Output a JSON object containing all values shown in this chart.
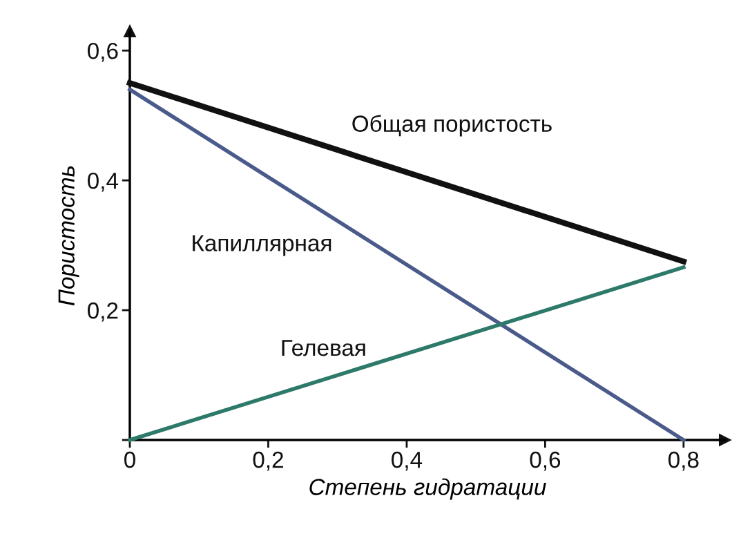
{
  "chart_data": {
    "type": "line",
    "xlabel": "Степень гидратации",
    "ylabel": "Пористость",
    "x": [
      0,
      0.8
    ],
    "series": [
      {
        "name": "Общая пористость",
        "color": "#111111",
        "values": [
          0.55,
          0.275
        ]
      },
      {
        "name": "Капиллярная",
        "color": "#4a5a8a",
        "values": [
          0.54,
          0
        ]
      },
      {
        "name": "Гелевая",
        "color": "#2e7a6a",
        "values": [
          0,
          0.266
        ]
      }
    ],
    "xlim": [
      0,
      0.86
    ],
    "ylim": [
      0,
      0.63
    ],
    "xticks": [
      0,
      {
        "value": 0.2,
        "label": "0,2"
      },
      {
        "value": 0.4,
        "label": "0,4"
      },
      {
        "value": 0.6,
        "label": "0,6"
      },
      {
        "value": 0.8,
        "label": "0,8"
      }
    ],
    "yticks": [
      {
        "value": 0,
        "label": null
      },
      {
        "value": 0.2,
        "label": "0,2"
      },
      {
        "value": 0.4,
        "label": "0,4"
      },
      {
        "value": 0.6,
        "label": "0,6"
      }
    ],
    "grid": false,
    "legend": false,
    "marker": "none",
    "line_style": "solid"
  }
}
